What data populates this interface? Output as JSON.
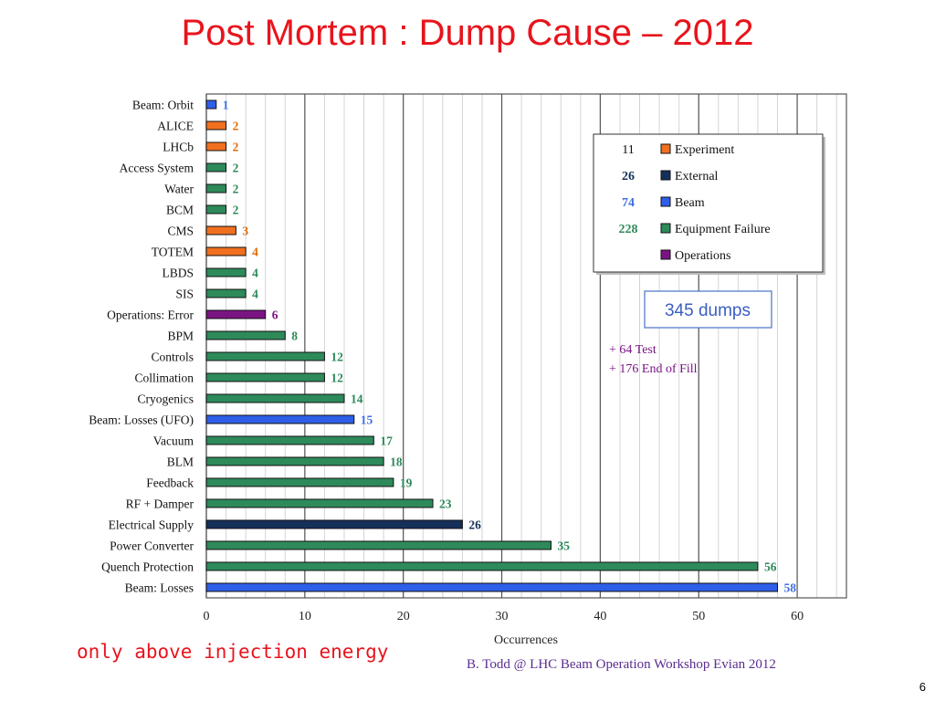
{
  "slide": {
    "title": "Post Mortem : Dump Cause – 2012",
    "note": "only above injection energy",
    "credit": "B. Todd  @  LHC Beam Operation Workshop  Evian 2012",
    "page_number": "6"
  },
  "colors": {
    "Experiment": "#f07020",
    "External": "#14305a",
    "Beam": "#2f5fe8",
    "Equipment Failure": "#2e8a5a",
    "Operations": "#7a1483"
  },
  "label_colors": {
    "Experiment": "#e36c0a",
    "External": "#14305a",
    "Beam": "#3f6fe0",
    "Equipment Failure": "#2e8a5a",
    "Operations": "#7a1483"
  },
  "chart_data": {
    "type": "bar",
    "orientation": "horizontal",
    "xlabel": "Occurrences",
    "xlim": [
      0,
      65
    ],
    "xticks": [
      0,
      10,
      20,
      30,
      40,
      50,
      60
    ],
    "grid": true,
    "categories": [
      "Beam: Orbit",
      "ALICE",
      "LHCb",
      "Access System",
      "Water",
      "BCM",
      "CMS",
      "TOTEM",
      "LBDS",
      "SIS",
      "Operations: Error",
      "BPM",
      "Controls",
      "Collimation",
      "Cryogenics",
      "Beam: Losses (UFO)",
      "Vacuum",
      "BLM",
      "Feedback",
      "RF + Damper",
      "Electrical Supply",
      "Power Converter",
      "Quench Protection",
      "Beam: Losses"
    ],
    "values": [
      1,
      2,
      2,
      2,
      2,
      2,
      3,
      4,
      4,
      4,
      6,
      8,
      12,
      12,
      14,
      15,
      17,
      18,
      19,
      23,
      26,
      35,
      56,
      58
    ],
    "groups": [
      "Beam",
      "Experiment",
      "Experiment",
      "Equipment Failure",
      "Equipment Failure",
      "Equipment Failure",
      "Experiment",
      "Experiment",
      "Equipment Failure",
      "Equipment Failure",
      "Operations",
      "Equipment Failure",
      "Equipment Failure",
      "Equipment Failure",
      "Equipment Failure",
      "Beam",
      "Equipment Failure",
      "Equipment Failure",
      "Equipment Failure",
      "Equipment Failure",
      "External",
      "Equipment Failure",
      "Equipment Failure",
      "Beam"
    ],
    "legend": {
      "placement": "top-right",
      "entries": [
        {
          "count": "11",
          "name": "Experiment"
        },
        {
          "count": "26",
          "name": "External"
        },
        {
          "count": "74",
          "name": "Beam"
        },
        {
          "count": "228",
          "name": "Equipment Failure"
        },
        {
          "count": "",
          "name": "Operations"
        }
      ]
    },
    "annotations": {
      "total_box": "345 dumps",
      "extra_lines": [
        "+ 64 Test",
        "+ 176 End of Fill"
      ]
    }
  }
}
